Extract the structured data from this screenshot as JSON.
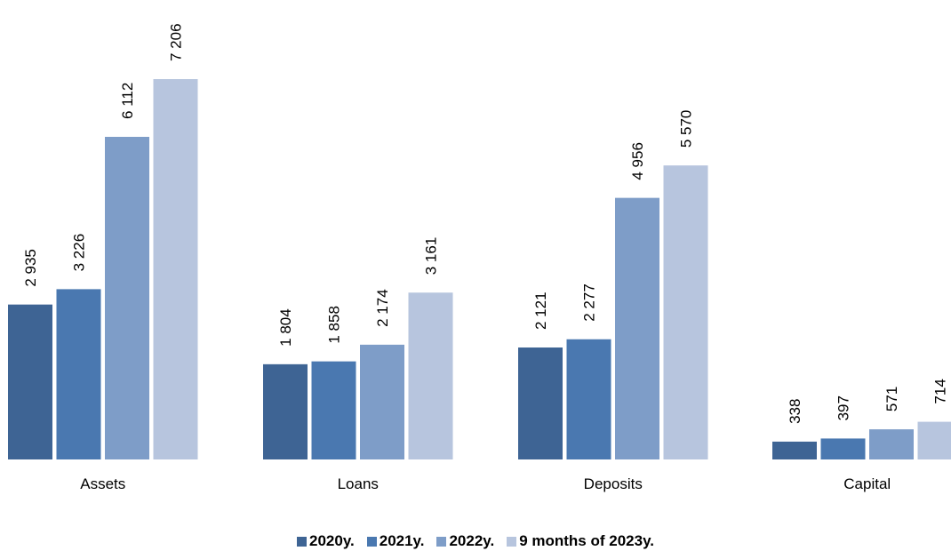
{
  "chart_data": {
    "type": "bar",
    "categories": [
      "Assets",
      "Loans",
      "Deposits",
      "Capital"
    ],
    "series": [
      {
        "name": "2020y.",
        "values": [
          2935,
          1804,
          2121,
          338
        ],
        "labels": [
          "2 935",
          "1 804",
          "2 121",
          "338"
        ]
      },
      {
        "name": "2021y.",
        "values": [
          3226,
          1858,
          2277,
          397
        ],
        "labels": [
          "3 226",
          "1 858",
          "2 277",
          "397"
        ]
      },
      {
        "name": "2022y.",
        "values": [
          6112,
          2174,
          4956,
          571
        ],
        "labels": [
          "6 112",
          "2 174",
          "4 956",
          "571"
        ]
      },
      {
        "name": "9 months of 2023y.",
        "values": [
          7206,
          3161,
          5570,
          714
        ],
        "labels": [
          "7 206",
          "3 161",
          "5 570",
          "714"
        ]
      }
    ],
    "colors": [
      "#3e6494",
      "#4a78b0",
      "#7e9dc8",
      "#b7c5de"
    ],
    "title": "",
    "xlabel": "",
    "ylabel": "",
    "ylim": [
      0,
      7500
    ],
    "grid": false,
    "legend_position": "bottom"
  }
}
